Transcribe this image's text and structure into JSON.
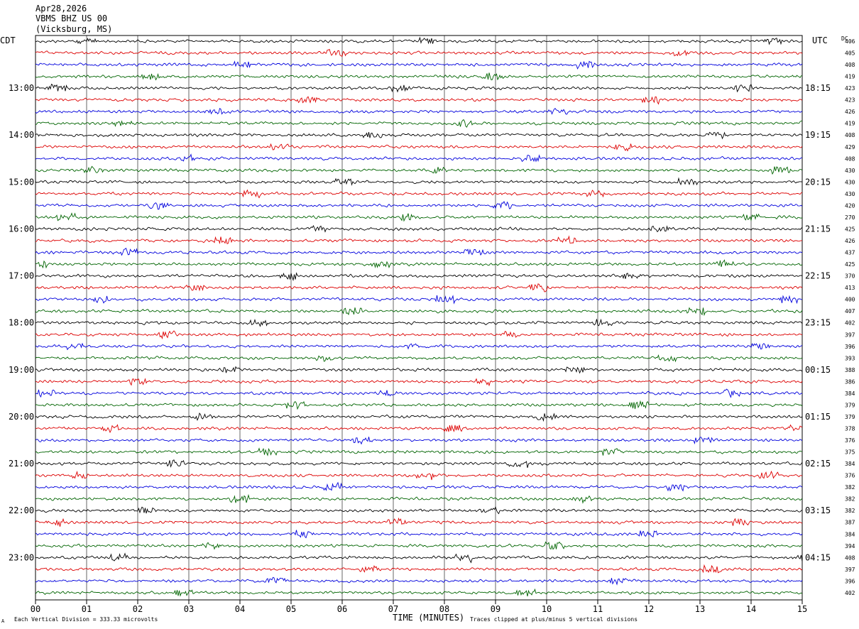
{
  "header": {
    "date": "Apr28,2026",
    "station": "VBMS BHZ US 00",
    "location": "(Vicksburg, MS)"
  },
  "labels": {
    "left_tz": "CDT",
    "right_tz": "UTC",
    "dc": "DC",
    "xlabel": "TIME (MINUTES)",
    "scale_note": "Each Vertical Division =  333.33 microvolts",
    "clip_note": "Traces clipped at plus/minus 5 vertical divisions",
    "corner_mark": "A"
  },
  "colors": [
    "#000000",
    "#dd0000",
    "#0000dd",
    "#006400"
  ],
  "chart_data": {
    "type": "line",
    "title": "VBMS BHZ US 00",
    "xlabel": "TIME (MINUTES)",
    "xlim": [
      0,
      15
    ],
    "x_ticks": [
      "00",
      "01",
      "02",
      "03",
      "04",
      "05",
      "06",
      "07",
      "08",
      "09",
      "10",
      "11",
      "12",
      "13",
      "14",
      "15"
    ],
    "traces_per_hour": 4,
    "cdt_hour_labels": [
      "13:00",
      "14:00",
      "15:00",
      "16:00",
      "17:00",
      "18:00",
      "19:00",
      "20:00",
      "21:00",
      "22:00",
      "23:00"
    ],
    "utc_hour_labels": [
      "18:15",
      "19:15",
      "20:15",
      "21:15",
      "22:15",
      "23:15",
      "00:15",
      "01:15",
      "02:15",
      "03:15",
      "04:15"
    ],
    "dc_offsets": [
      "406",
      "405",
      "408",
      "419",
      "423",
      "423",
      "426",
      "419",
      "408",
      "429",
      "408",
      "430",
      "430",
      "430",
      "420",
      "270",
      "425",
      "426",
      "437",
      "425",
      "370",
      "413",
      "400",
      "407",
      "402",
      "397",
      "396",
      "393",
      "388",
      "386",
      "384",
      "379",
      "379",
      "378",
      "376",
      "375",
      "384",
      "376",
      "382",
      "382",
      "382",
      "387",
      "384",
      "394",
      "408",
      "397",
      "396",
      "402"
    ],
    "grid": true
  }
}
